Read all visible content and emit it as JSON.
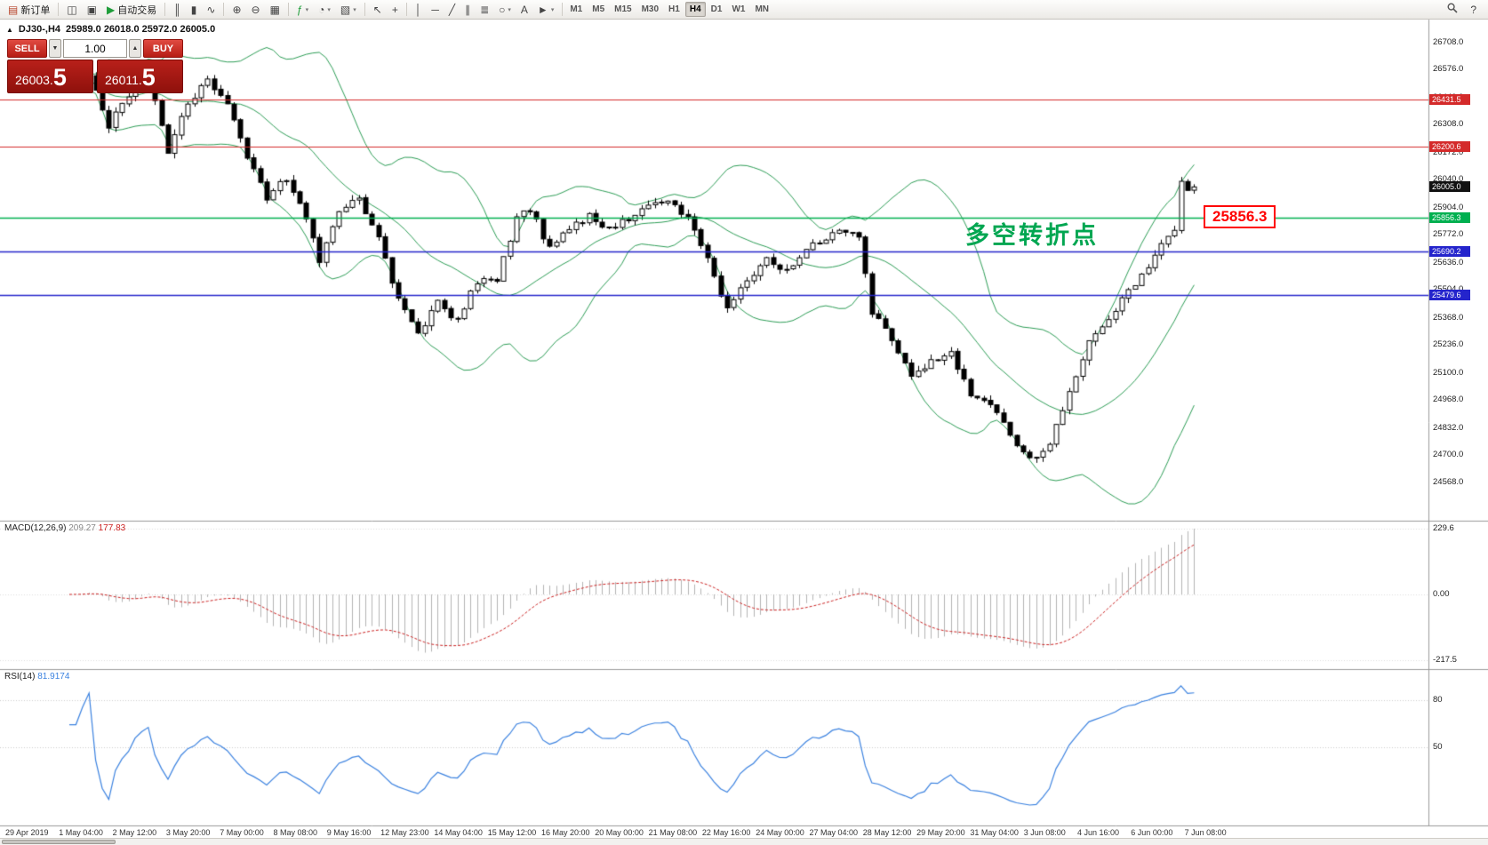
{
  "toolbar": {
    "caret_glyph": "▾",
    "items": [
      {
        "name": "new-order-button",
        "glyph": "▤",
        "glyph_color": "#b8452c",
        "label": "新订单"
      },
      {
        "sep": true
      },
      {
        "name": "charts-window-button",
        "glyph": "◫"
      },
      {
        "name": "profile-button",
        "glyph": "▣"
      },
      {
        "name": "autotrade-button",
        "glyph": "▶",
        "glyph_color": "#1f9d3a",
        "label": "自动交易"
      },
      {
        "sep": true
      },
      {
        "name": "bar-chart-button",
        "glyph": "║"
      },
      {
        "name": "candlestick-chart-button",
        "glyph": "▮"
      },
      {
        "name": "line-chart-button",
        "glyph": "∿"
      },
      {
        "sep": true
      },
      {
        "name": "zoom-in-button",
        "glyph": "⊕"
      },
      {
        "name": "zoom-out-button",
        "glyph": "⊖"
      },
      {
        "name": "tile-windows-button",
        "glyph": "▦"
      },
      {
        "sep": true
      },
      {
        "name": "indicators-button",
        "glyph": "ƒ",
        "glyph_color": "#1f9d3a",
        "caret": true
      },
      {
        "name": "period-button",
        "glyph": "◔",
        "caret": true
      },
      {
        "name": "templates-button",
        "glyph": "▧",
        "caret": true
      },
      {
        "sep": true
      },
      {
        "name": "cursor-button",
        "glyph": "↖"
      },
      {
        "name": "crosshair-button",
        "glyph": "+"
      },
      {
        "sep": true
      },
      {
        "name": "vertical-line-button",
        "glyph": "│"
      },
      {
        "name": "horizontal-line-button",
        "glyph": "─"
      },
      {
        "name": "trendline-button",
        "glyph": "╱"
      },
      {
        "name": "channel-button",
        "glyph": "∥"
      },
      {
        "name": "fibonacci-button",
        "glyph": "≣"
      },
      {
        "name": "shapes-button",
        "glyph": "○",
        "caret": true
      },
      {
        "name": "text-button",
        "glyph": "A"
      },
      {
        "name": "arrows-button",
        "glyph": "►",
        "caret": true
      },
      {
        "sep": true
      }
    ],
    "timeframes": [
      {
        "label": "M1"
      },
      {
        "label": "M5"
      },
      {
        "label": "M15"
      },
      {
        "label": "M30"
      },
      {
        "label": "H1"
      },
      {
        "label": "H4",
        "active": true
      },
      {
        "label": "D1"
      },
      {
        "label": "W1"
      },
      {
        "label": "MN"
      }
    ],
    "help_glyph": "?"
  },
  "chart": {
    "collapse_glyph": "▲",
    "symbol_title": "DJ30-,H4",
    "ohlc_text": "25989.0 26018.0 25972.0 26005.0",
    "trade_panel": {
      "sell_label": "SELL",
      "buy_label": "BUY",
      "volume": "1.00",
      "down_glyph": "▼",
      "up_glyph": "▲",
      "sell_price_main": "26003.",
      "sell_price_frac": "5",
      "buy_price_main": "26011.",
      "buy_price_frac": "5"
    },
    "annotation": "多空转折点",
    "callout_price": "25856.3",
    "current_price": 26005.0,
    "current_price_tag": "26005.0",
    "price_axis_labels": [
      "26708.0",
      "26576.0",
      "26440.0",
      "26308.0",
      "26172.0",
      "26040.0",
      "25904.0",
      "25772.0",
      "25636.0",
      "25504.0",
      "25368.0",
      "25236.0",
      "25100.0",
      "24968.0",
      "24832.0",
      "24700.0",
      "24568.0"
    ],
    "hlines": [
      {
        "price": 26431.5,
        "label": "26431.5",
        "color": "#d42a2a",
        "width": 1.2
      },
      {
        "price": 26200.6,
        "label": "26200.6",
        "color": "#d42a2a",
        "width": 1.2
      },
      {
        "price": 25856.3,
        "label": "25856.3",
        "color": "#00b050",
        "width": 1.5
      },
      {
        "price": 25690.2,
        "label": "25690.2",
        "color": "#2424cc",
        "width": 1.3
      },
      {
        "price": 25479.6,
        "label": "25479.6",
        "color": "#2424cc",
        "width": 1.3
      }
    ],
    "colors": {
      "bull": "#ffffff",
      "bear": "#000000",
      "wick": "#000000",
      "bollinger": "#2e9e57",
      "macd_histogram": "#b4b4b4",
      "macd_signal": "#cc2222",
      "rsi_line": "#3b82e0",
      "current_tag_bg": "#111111"
    }
  },
  "macd_panel": {
    "title": "MACD(12,26,9)",
    "value_main": "209.27",
    "value_signal": "177.83",
    "axis_labels": [
      "229.6",
      "0.00",
      "-217.5"
    ]
  },
  "rsi_panel": {
    "title": "RSI(14)",
    "value": "81.9174",
    "axis_labels": [
      "80",
      "50"
    ],
    "levels": [
      80,
      50
    ]
  },
  "time_axis": {
    "labels": [
      "29 Apr 2019",
      "1 May 04:00",
      "2 May 12:00",
      "3 May 20:00",
      "7 May 00:00",
      "8 May 08:00",
      "9 May 16:00",
      "12 May 23:00",
      "14 May 04:00",
      "15 May 12:00",
      "16 May 20:00",
      "20 May 00:00",
      "21 May 08:00",
      "22 May 16:00",
      "24 May 00:00",
      "27 May 04:00",
      "28 May 12:00",
      "29 May 20:00",
      "31 May 04:00",
      "3 Jun 08:00",
      "4 Jun 16:00",
      "6 Jun 00:00",
      "7 Jun 08:00"
    ]
  },
  "chart_data": {
    "type": "candlestick",
    "symbol": "DJ30-",
    "timeframe": "H4",
    "ohlc_current": {
      "open": 25989.0,
      "high": 26018.0,
      "low": 25972.0,
      "close": 26005.0
    },
    "visible_price_range": [
      24380,
      26820
    ],
    "bars_visible": 172,
    "close_path_anchors": [
      [
        0,
        26500
      ],
      [
        3,
        26540
      ],
      [
        6,
        26300
      ],
      [
        9,
        26460
      ],
      [
        12,
        26580
      ],
      [
        15,
        26160
      ],
      [
        18,
        26420
      ],
      [
        21,
        26520
      ],
      [
        24,
        26420
      ],
      [
        27,
        26150
      ],
      [
        30,
        25950
      ],
      [
        33,
        26050
      ],
      [
        36,
        25850
      ],
      [
        38,
        25650
      ],
      [
        41,
        25900
      ],
      [
        44,
        25950
      ],
      [
        47,
        25750
      ],
      [
        50,
        25450
      ],
      [
        53,
        25280
      ],
      [
        56,
        25450
      ],
      [
        59,
        25350
      ],
      [
        62,
        25550
      ],
      [
        65,
        25550
      ],
      [
        68,
        25850
      ],
      [
        70,
        25900
      ],
      [
        73,
        25700
      ],
      [
        76,
        25800
      ],
      [
        79,
        25870
      ],
      [
        82,
        25800
      ],
      [
        85,
        25850
      ],
      [
        88,
        25900
      ],
      [
        91,
        25940
      ],
      [
        94,
        25850
      ],
      [
        97,
        25650
      ],
      [
        100,
        25400
      ],
      [
        103,
        25550
      ],
      [
        106,
        25650
      ],
      [
        109,
        25600
      ],
      [
        112,
        25700
      ],
      [
        115,
        25750
      ],
      [
        118,
        25800
      ],
      [
        120,
        25750
      ],
      [
        122,
        25400
      ],
      [
        125,
        25250
      ],
      [
        128,
        25100
      ],
      [
        131,
        25150
      ],
      [
        134,
        25200
      ],
      [
        137,
        25000
      ],
      [
        140,
        24950
      ],
      [
        143,
        24800
      ],
      [
        146,
        24680
      ],
      [
        149,
        24750
      ],
      [
        152,
        25000
      ],
      [
        155,
        25250
      ],
      [
        158,
        25350
      ],
      [
        161,
        25500
      ],
      [
        164,
        25600
      ],
      [
        167,
        25780
      ],
      [
        168,
        25800
      ],
      [
        169,
        26020
      ],
      [
        170,
        25990
      ],
      [
        171,
        26005
      ]
    ],
    "horizontal_lines": [
      26431.5,
      26200.6,
      25856.3,
      25690.2,
      25479.6
    ],
    "indicators": {
      "bollinger_bands": {
        "period": 20,
        "deviation": 2
      },
      "macd": {
        "fast": 12,
        "slow": 26,
        "signal": 9,
        "current_main": 209.27,
        "current_signal": 177.83,
        "axis_max": 229.6,
        "axis_min": -217.5
      },
      "rsi": {
        "period": 14,
        "current": 81.9174,
        "levels": [
          80,
          50
        ]
      }
    }
  }
}
